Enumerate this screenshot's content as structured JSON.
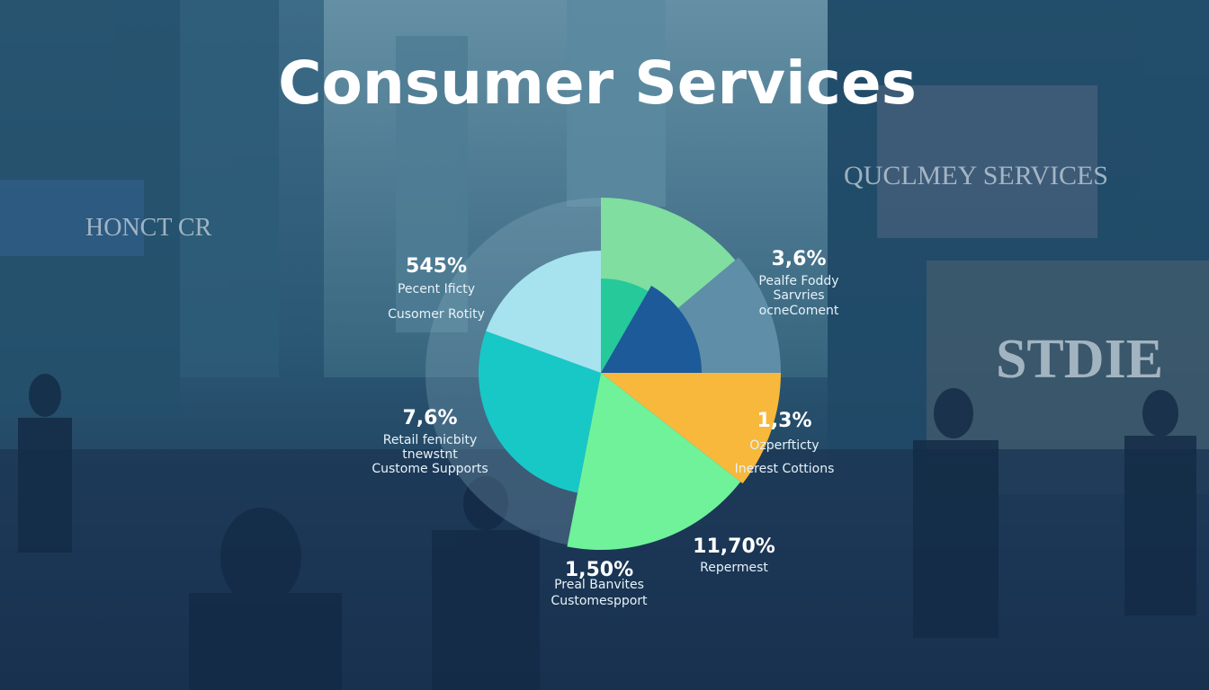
{
  "title": "Consumer Services",
  "signs": [
    "HONCT CR",
    "QUCLMEY SERVICES",
    "STDIE"
  ],
  "callouts": [
    {
      "value": "545%",
      "lines": [
        "Pecent Ificty",
        "Cusomer Rotity"
      ]
    },
    {
      "value": "3,6%",
      "lines": [
        "Pealfe Foddy",
        "Sarvries",
        "ocneComent"
      ]
    },
    {
      "value": "7,6%",
      "lines": [
        "Retail fenicbity",
        "tnewstnt",
        "Custome Supports"
      ]
    },
    {
      "value": "1,3%",
      "lines": [
        "Ozperfticty",
        "Inerest Cottions"
      ]
    },
    {
      "value": "11,70%",
      "lines": [
        "Repermest"
      ]
    },
    {
      "value": "1,50%",
      "lines": [
        "Preal Banvites",
        "Customespport"
      ]
    }
  ]
}
